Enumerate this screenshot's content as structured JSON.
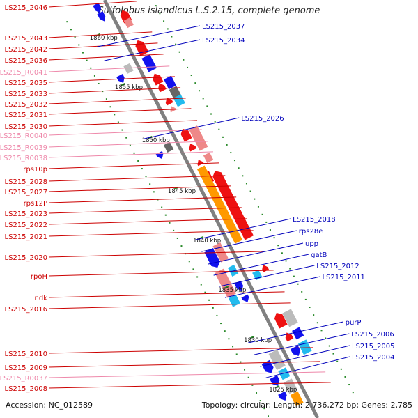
{
  "title": "Sulfolobus islandicus L.S.2.15, complete genome",
  "footer": {
    "accession": "Accession: NC_012589",
    "summary": "Topology: circular; Length: 2,736,272 bp; Genes: 2,785"
  },
  "colors": {
    "backbone": "#808080",
    "left_label": "#cc0000",
    "left_rna_label": "#ee88aa",
    "right_label": "#0000bb",
    "kbp_tick": "#2a8a2a",
    "gene_red": "#ee1111",
    "gene_pink": "#ee8888",
    "gene_orange": "#ff9900",
    "gene_blue": "#1111ee",
    "gene_cyan": "#22bbee",
    "gene_gray": "#bbbbbb",
    "gene_darkgray": "#666666"
  },
  "kbp_markers": [
    "1860 kbp",
    "1855 kbp",
    "1850 kbp",
    "1845 kbp",
    "1840 kbp",
    "1835 kbp",
    "1830 kbp",
    "1825 kbp"
  ],
  "left_labels": [
    {
      "text": "LS215_2046",
      "kind": "gene"
    },
    {
      "text": "LS215_2043",
      "kind": "gene"
    },
    {
      "text": "LS215_2042",
      "kind": "gene"
    },
    {
      "text": "LS215_2036",
      "kind": "gene"
    },
    {
      "text": "LS215_R0041",
      "kind": "rna"
    },
    {
      "text": "LS215_2035",
      "kind": "gene"
    },
    {
      "text": "LS215_2033",
      "kind": "gene"
    },
    {
      "text": "LS215_2032",
      "kind": "gene"
    },
    {
      "text": "LS215_2031",
      "kind": "gene"
    },
    {
      "text": "LS215_2030",
      "kind": "gene"
    },
    {
      "text": "LS215_R0040",
      "kind": "rna"
    },
    {
      "text": "LS215_R0039",
      "kind": "rna"
    },
    {
      "text": "LS215_R0038",
      "kind": "rna"
    },
    {
      "text": "rps10p",
      "kind": "gene"
    },
    {
      "text": "LS215_2028",
      "kind": "gene"
    },
    {
      "text": "LS215_2027",
      "kind": "gene"
    },
    {
      "text": "rps12P",
      "kind": "gene"
    },
    {
      "text": "LS215_2023",
      "kind": "gene"
    },
    {
      "text": "LS215_2022",
      "kind": "gene"
    },
    {
      "text": "LS215_2021",
      "kind": "gene"
    },
    {
      "text": "LS215_2020",
      "kind": "gene"
    },
    {
      "text": "rpoH",
      "kind": "gene"
    },
    {
      "text": "ndk",
      "kind": "gene"
    },
    {
      "text": "LS215_2016",
      "kind": "gene"
    },
    {
      "text": "LS215_2010",
      "kind": "gene"
    },
    {
      "text": "LS215_2009",
      "kind": "gene"
    },
    {
      "text": "LS215_R0037",
      "kind": "rna"
    },
    {
      "text": "LS215_2008",
      "kind": "gene"
    }
  ],
  "right_labels": [
    "LS215_2037",
    "LS215_2034",
    "LS215_2026",
    "LS215_2018",
    "rps28e",
    "upp",
    "gatB",
    "LS215_2012",
    "LS215_2011",
    "purP",
    "LS215_2006",
    "LS215_2005",
    "LS215_2004"
  ]
}
